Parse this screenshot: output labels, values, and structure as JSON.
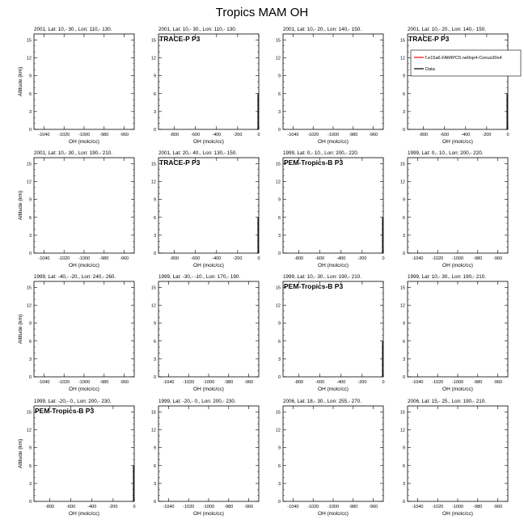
{
  "title": "Tropics MAM OH",
  "ylabel": "Altitude (km)",
  "xlabel": "OH (molc/cc)",
  "legend": {
    "entries": [
      {
        "label": "f.e15a6.FAMIPC5.ne0np4-Conus30x4",
        "color": "#ff0000"
      },
      {
        "label": "Data",
        "color": "#000000"
      }
    ]
  },
  "panels": [
    {
      "title": "2001, Lat: 10,- 30., Lon: 110,- 130.",
      "campaign": "",
      "xticks": [
        "-1040",
        "-1020",
        "-1000",
        "-980",
        "-960"
      ],
      "xlim": [
        -1050,
        -950
      ]
    },
    {
      "title": "2001, Lat: 10,- 30., Lon: 110,- 130.",
      "campaign": "TRACE-P P3",
      "xticks": [
        "-800",
        "-600",
        "-400",
        "-200",
        "0"
      ],
      "xlim": [
        -950,
        0
      ]
    },
    {
      "title": "2001, Lat: 10,- 20., Lon: 140,- 150.",
      "campaign": "",
      "xticks": [
        "-1040",
        "-1020",
        "-1000",
        "-980",
        "-960"
      ],
      "xlim": [
        -1050,
        -950
      ]
    },
    {
      "title": "2001, Lat: 10,- 20., Lon: 140,- 150.",
      "campaign": "TRACE-P P3",
      "xticks": [
        "-800",
        "-600",
        "-400",
        "-200",
        "0"
      ],
      "xlim": [
        -950,
        0
      ]
    },
    {
      "title": "2001, Lat: 10,- 30., Lon: 190,- 210.",
      "campaign": "",
      "xticks": [
        "-1040",
        "-1020",
        "-1000",
        "-980",
        "-960"
      ],
      "xlim": [
        -1050,
        -950
      ]
    },
    {
      "title": "2001, Lat: 20,- 40., Lon: 130,- 150.",
      "campaign": "TRACE-P P3",
      "xticks": [
        "-800",
        "-600",
        "-400",
        "-200",
        "0"
      ],
      "xlim": [
        -950,
        0
      ]
    },
    {
      "title": "1999, Lat: 0,- 10., Lon: 200,- 220.",
      "campaign": "PEM-Tropics-B P3",
      "xticks": [
        "-800",
        "-600",
        "-400",
        "-200",
        "0"
      ],
      "xlim": [
        -950,
        0
      ]
    },
    {
      "title": "1999, Lat: 0,- 10., Lon: 200,- 220.",
      "campaign": "",
      "xticks": [
        "-1040",
        "-1020",
        "-1000",
        "-980",
        "-960"
      ],
      "xlim": [
        -1050,
        -950
      ]
    },
    {
      "title": "1999, Lat: -40,- -20., Lon: 240,- 260.",
      "campaign": "",
      "xticks": [
        "-1040",
        "-1020",
        "-1000",
        "-980",
        "-960"
      ],
      "xlim": [
        -1050,
        -950
      ]
    },
    {
      "title": "1999, Lat: -30,- -10., Lon: 170,- 190.",
      "campaign": "",
      "xticks": [
        "-1040",
        "-1020",
        "-1000",
        "-980",
        "-960"
      ],
      "xlim": [
        -1050,
        -950
      ]
    },
    {
      "title": "1999, Lat: 10,- 30., Lon: 190,- 210.",
      "campaign": "PEM-Tropics-B P3",
      "xticks": [
        "-800",
        "-600",
        "-400",
        "-200",
        "0"
      ],
      "xlim": [
        -950,
        0
      ]
    },
    {
      "title": "1999, Lat: 10,- 30., Lon: 190,- 210.",
      "campaign": "",
      "xticks": [
        "-1040",
        "-1020",
        "-1000",
        "-980",
        "-960"
      ],
      "xlim": [
        -1050,
        -950
      ]
    },
    {
      "title": "1999, Lat: -20,- 0., Lon: 200,- 230.",
      "campaign": "PEM-Tropics-B P3",
      "xticks": [
        "-800",
        "-600",
        "-400",
        "-200",
        "0"
      ],
      "xlim": [
        -950,
        0
      ]
    },
    {
      "title": "1999, Lat: -20,- 0., Lon: 200,- 230.",
      "campaign": "",
      "xticks": [
        "-1040",
        "-1020",
        "-1000",
        "-980",
        "-960"
      ],
      "xlim": [
        -1050,
        -950
      ]
    },
    {
      "title": "2006, Lat: 18,- 30., Lon: 255,- 270.",
      "campaign": "",
      "xticks": [
        "-1040",
        "-1020",
        "-1000",
        "-980",
        "-960"
      ],
      "xlim": [
        -1050,
        -950
      ]
    },
    {
      "title": "2006, Lat: 15,- 25., Lon: 190,- 210.",
      "campaign": "",
      "xticks": [
        "-1040",
        "-1020",
        "-1000",
        "-980",
        "-960"
      ],
      "xlim": [
        -1050,
        -950
      ]
    }
  ],
  "chart_data": {
    "type": "line",
    "title": "Tropics MAM OH",
    "xlabel": "OH (molc/cc)",
    "ylabel": "Altitude (km)",
    "ylim": [
      0,
      16
    ],
    "yticks": [
      "0",
      "3",
      "6",
      "9",
      "12",
      "15"
    ],
    "grid": false,
    "legend_position": "top-right",
    "series": [
      {
        "name": "f.e15a6.FAMIPC5.ne0np4-Conus30x4",
        "color": "#ff0000",
        "x": [],
        "y": []
      },
      {
        "name": "Data",
        "color": "#000000",
        "x": [],
        "y": []
      }
    ]
  }
}
